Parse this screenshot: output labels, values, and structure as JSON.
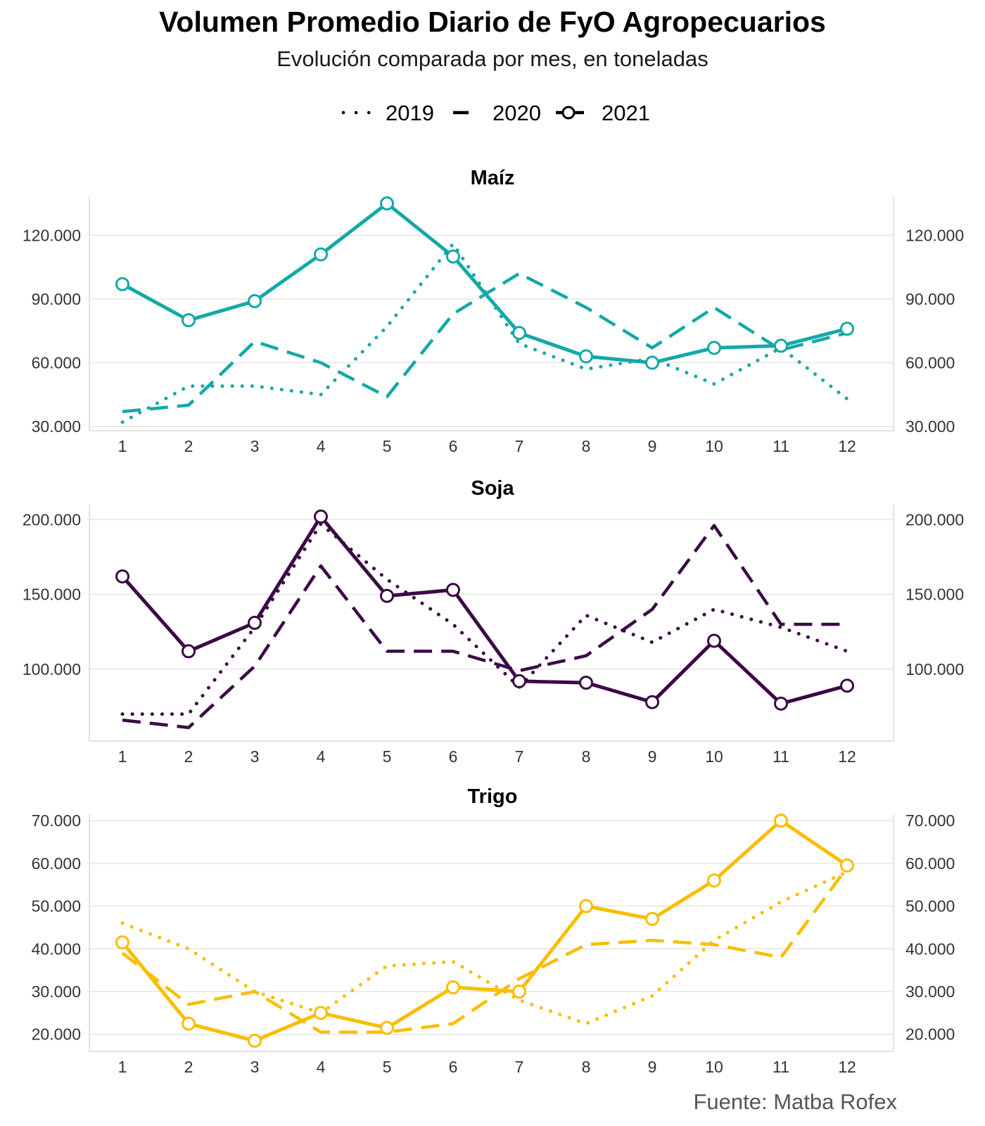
{
  "title": "Volumen Promedio Diario de FyO Agropecuarios",
  "subtitle": "Evolución comparada por mes, en toneladas",
  "source": "Fuente: Matba Rofex",
  "legend": [
    {
      "label": "2019",
      "style": "dotted"
    },
    {
      "label": "2020",
      "style": "dashed"
    },
    {
      "label": "2021",
      "style": "solid-marker"
    }
  ],
  "chart_data": [
    {
      "type": "line",
      "title": "Maíz",
      "color": "#13A9A6",
      "x": [
        1,
        2,
        3,
        4,
        5,
        6,
        7,
        8,
        9,
        10,
        11,
        12
      ],
      "ylim": [
        28000,
        138000
      ],
      "yticks": [
        30000,
        60000,
        90000,
        120000
      ],
      "ytick_labels": [
        "30.000",
        "60.000",
        "90.000",
        "120.000"
      ],
      "series": [
        {
          "name": "2019",
          "values": [
            32000,
            49000,
            49000,
            45000,
            77000,
            116000,
            69000,
            57000,
            62000,
            50000,
            67000,
            43000
          ]
        },
        {
          "name": "2020",
          "values": [
            37000,
            40000,
            70000,
            60000,
            44000,
            83000,
            102000,
            86000,
            67000,
            86000,
            66000,
            74000
          ]
        },
        {
          "name": "2021",
          "values": [
            97000,
            80000,
            89000,
            111000,
            135000,
            110000,
            74000,
            63000,
            60000,
            67000,
            68000,
            76000
          ]
        }
      ]
    },
    {
      "type": "line",
      "title": "Soja",
      "color": "#3B0A45",
      "x": [
        1,
        2,
        3,
        4,
        5,
        6,
        7,
        8,
        9,
        10,
        11,
        12
      ],
      "ylim": [
        52000,
        210000
      ],
      "yticks": [
        100000,
        150000,
        200000
      ],
      "ytick_labels": [
        "100.000",
        "150.000",
        "200.000"
      ],
      "series": [
        {
          "name": "2019",
          "values": [
            70000,
            70000,
            128000,
            197000,
            160000,
            130000,
            88000,
            136000,
            118000,
            140000,
            128000,
            112000
          ]
        },
        {
          "name": "2020",
          "values": [
            66000,
            61000,
            102000,
            169000,
            112000,
            112000,
            99000,
            109000,
            140000,
            196000,
            130000,
            130000
          ]
        },
        {
          "name": "2021",
          "values": [
            162000,
            112000,
            131000,
            202000,
            149000,
            153000,
            92000,
            91000,
            78000,
            119000,
            77000,
            89000
          ]
        }
      ]
    },
    {
      "type": "line",
      "title": "Trigo",
      "color": "#F9BE00",
      "x": [
        1,
        2,
        3,
        4,
        5,
        6,
        7,
        8,
        9,
        10,
        11,
        12
      ],
      "ylim": [
        16000,
        71500
      ],
      "yticks": [
        20000,
        30000,
        40000,
        50000,
        60000,
        70000
      ],
      "ytick_labels": [
        "20.000",
        "30.000",
        "40.000",
        "50.000",
        "60.000",
        "70.000"
      ],
      "series": [
        {
          "name": "2019",
          "values": [
            46000,
            40000,
            30000,
            25000,
            36000,
            37000,
            28000,
            22500,
            29000,
            42000,
            51000,
            58000
          ]
        },
        {
          "name": "2020",
          "values": [
            39000,
            27000,
            30000,
            20500,
            20500,
            22500,
            33000,
            41000,
            42000,
            41000,
            38000,
            59000
          ]
        },
        {
          "name": "2021",
          "values": [
            41500,
            22500,
            18500,
            25000,
            21500,
            31000,
            30000,
            50000,
            47000,
            56000,
            70000,
            59500
          ]
        }
      ]
    }
  ]
}
